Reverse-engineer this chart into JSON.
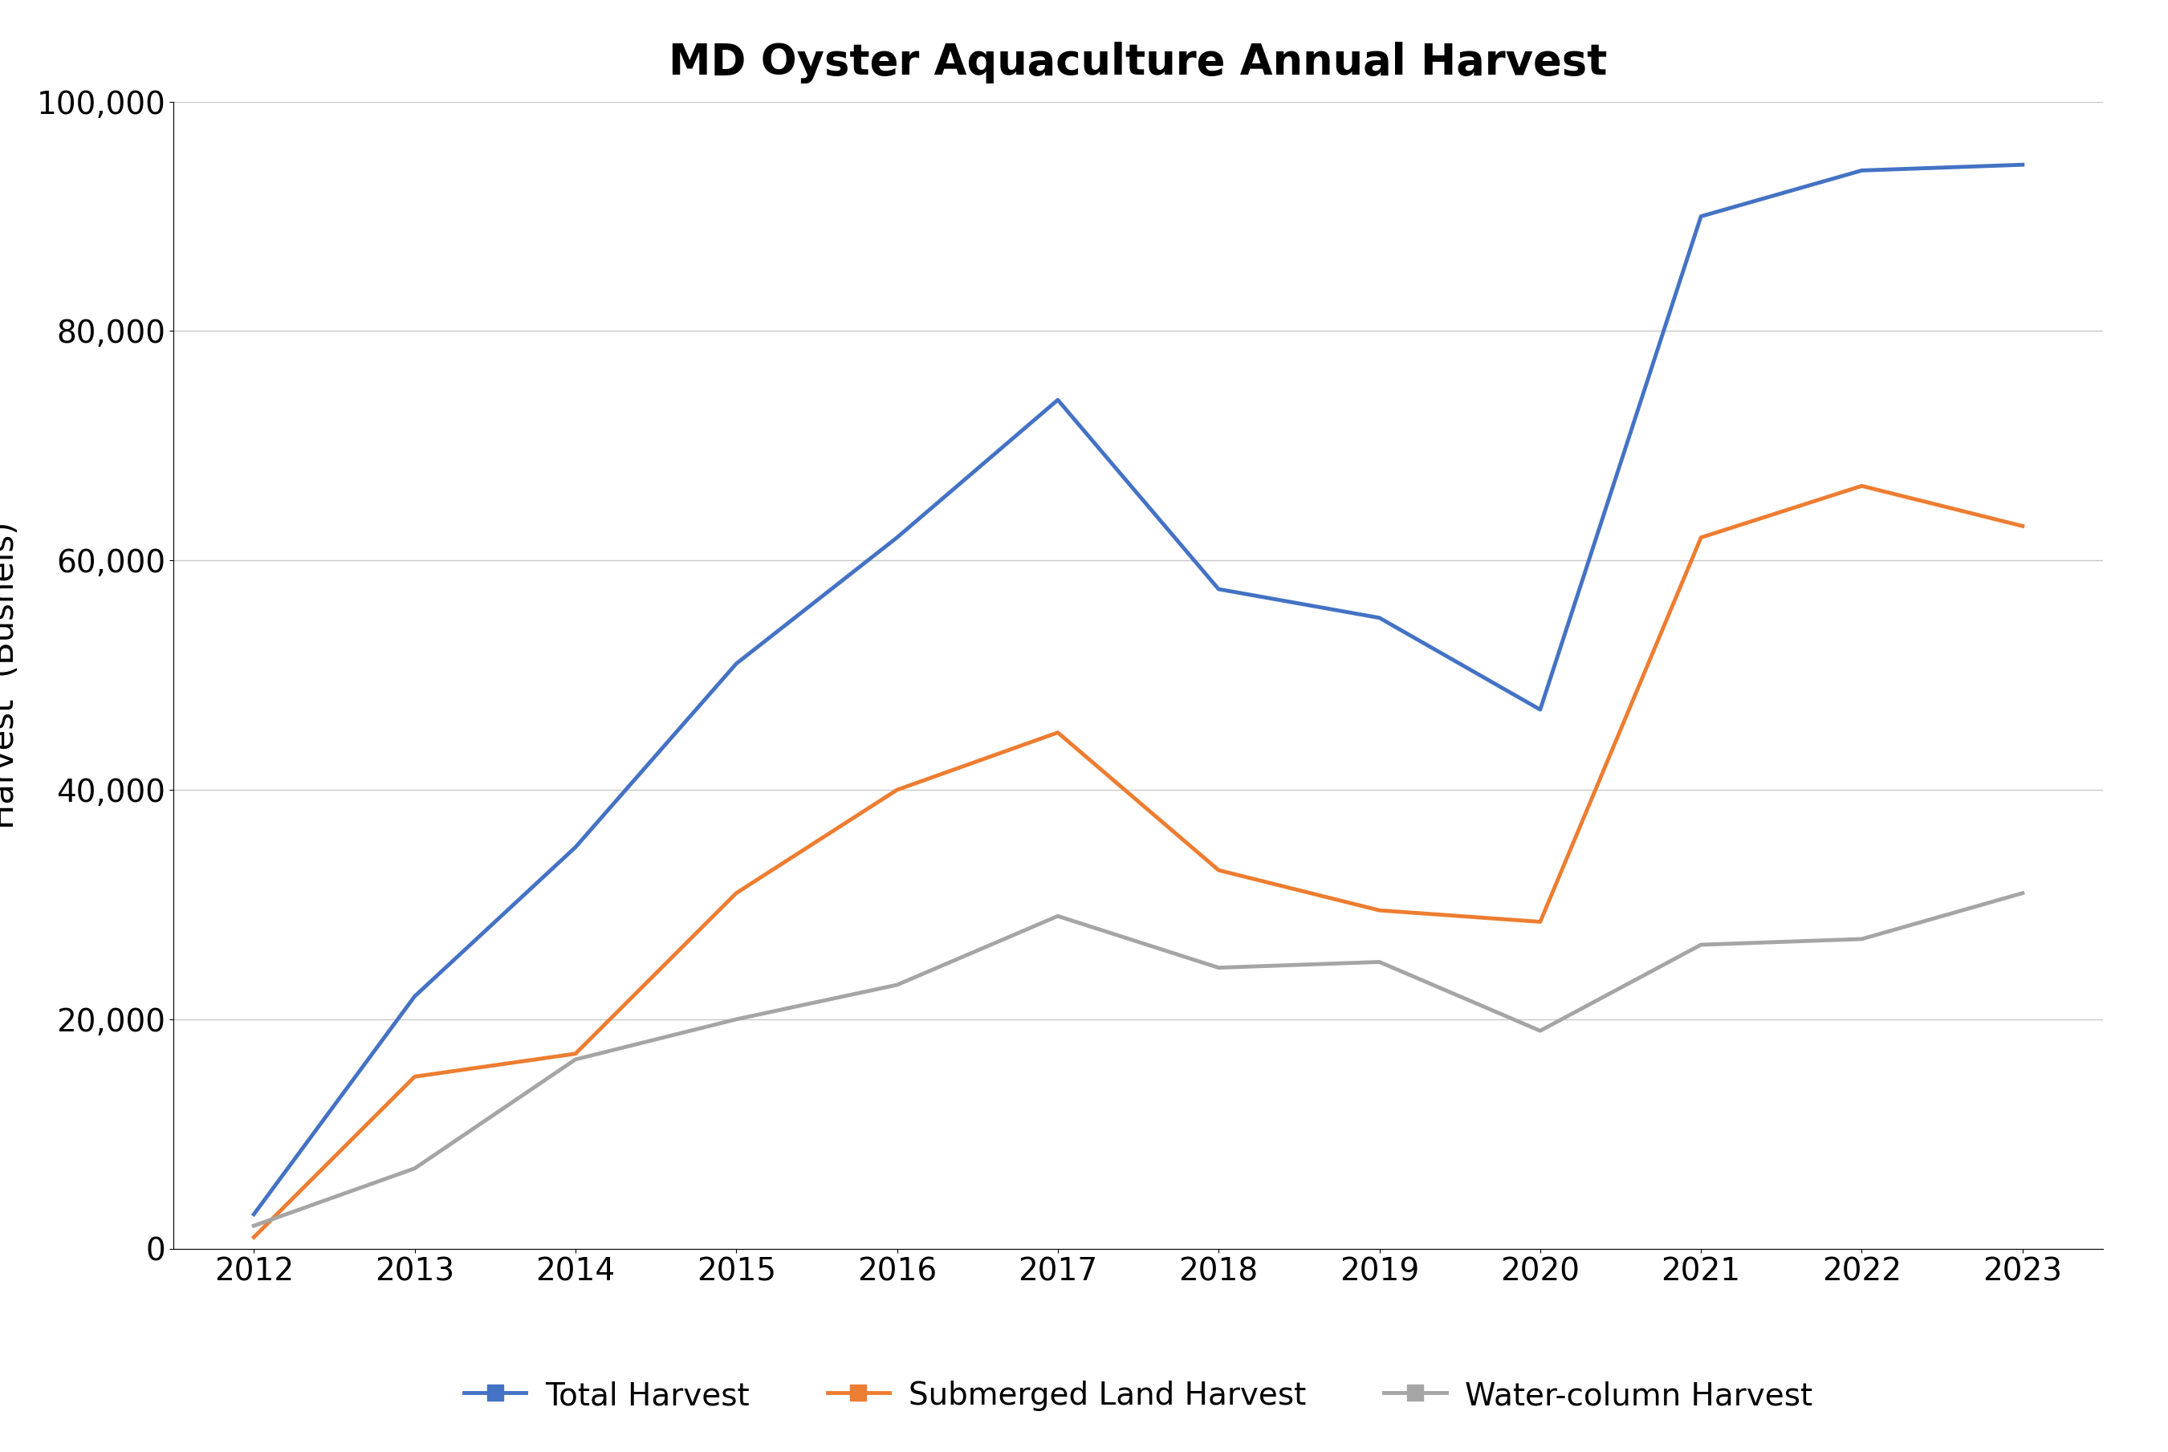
{
  "title": "MD Oyster Aquaculture Annual Harvest",
  "years": [
    2012,
    2013,
    2014,
    2015,
    2016,
    2017,
    2018,
    2019,
    2020,
    2021,
    2022,
    2023
  ],
  "total_harvest": [
    3000,
    22000,
    35000,
    51000,
    62000,
    74000,
    57500,
    55000,
    47000,
    90000,
    94000,
    94500
  ],
  "submerged_harvest": [
    1000,
    15000,
    17000,
    31000,
    40000,
    45000,
    33000,
    29500,
    28500,
    62000,
    66500,
    63000
  ],
  "watercolumn_harvest": [
    2000,
    7000,
    16500,
    20000,
    23000,
    29000,
    24500,
    25000,
    19000,
    26500,
    27000,
    31000
  ],
  "total_color": "#4472C4",
  "submerged_color": "#ED7D31",
  "watercolumn_color": "#A5A5A5",
  "ylabel": "Harvest  (Bushels)",
  "ylim": [
    0,
    100000
  ],
  "yticks": [
    0,
    20000,
    40000,
    60000,
    80000,
    100000
  ],
  "legend_labels": [
    "Total Harvest",
    "Submerged Land Harvest",
    "Water-column Harvest"
  ],
  "line_width": 3.5,
  "background_color": "#FFFFFF",
  "plot_bg_color": "#FFFFFF",
  "title_fontsize": 38,
  "label_fontsize": 30,
  "tick_fontsize": 28,
  "legend_fontsize": 28
}
